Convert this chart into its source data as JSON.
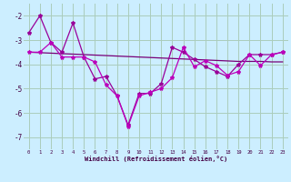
{
  "xlabel": "Windchill (Refroidissement éolien,°C)",
  "background_color": "#cceeff",
  "grid_color": "#aaccbb",
  "line_color1": "#990099",
  "line_color2": "#bb00bb",
  "line_color3": "#770077",
  "xlim": [
    -0.5,
    23.5
  ],
  "ylim": [
    -7.5,
    -1.5
  ],
  "yticks": [
    -7,
    -6,
    -5,
    -4,
    -3,
    -2
  ],
  "xticks": [
    0,
    1,
    2,
    3,
    4,
    5,
    6,
    7,
    8,
    9,
    10,
    11,
    12,
    13,
    14,
    15,
    16,
    17,
    18,
    19,
    20,
    21,
    22,
    23
  ],
  "series1_x": [
    0,
    1,
    2,
    3,
    4,
    5,
    6,
    7,
    8,
    9,
    10,
    11,
    12,
    13,
    14,
    15,
    16,
    17,
    18,
    19,
    20,
    21,
    22,
    23
  ],
  "series1_y": [
    -2.7,
    -2.0,
    -3.1,
    -3.5,
    -2.3,
    -3.7,
    -4.6,
    -4.5,
    -5.3,
    -6.5,
    -5.2,
    -5.2,
    -4.8,
    -3.3,
    -3.5,
    -3.8,
    -4.1,
    -4.3,
    -4.5,
    -4.0,
    -3.6,
    -3.6,
    -3.6,
    -3.5
  ],
  "series2_x": [
    0,
    1,
    2,
    3,
    4,
    5,
    6,
    7,
    8,
    9,
    10,
    11,
    12,
    13,
    14,
    15,
    16,
    17,
    18,
    19,
    20,
    21,
    22,
    23
  ],
  "series2_y": [
    -3.5,
    -3.52,
    -3.54,
    -3.56,
    -3.58,
    -3.6,
    -3.62,
    -3.64,
    -3.66,
    -3.68,
    -3.7,
    -3.72,
    -3.74,
    -3.76,
    -3.78,
    -3.8,
    -3.82,
    -3.84,
    -3.86,
    -3.88,
    -3.88,
    -3.88,
    -3.9,
    -3.9
  ],
  "series3_x": [
    0,
    1,
    2,
    3,
    4,
    5,
    6,
    7,
    8,
    9,
    10,
    11,
    12,
    13,
    14,
    15,
    16,
    17,
    18,
    19,
    20,
    21,
    22,
    23
  ],
  "series3_y": [
    -3.5,
    -3.5,
    -3.1,
    -3.7,
    -3.7,
    -3.7,
    -3.9,
    -4.85,
    -5.3,
    -6.55,
    -5.3,
    -5.15,
    -5.0,
    -4.55,
    -3.3,
    -4.1,
    -3.85,
    -4.05,
    -4.45,
    -4.3,
    -3.6,
    -4.05,
    -3.6,
    -3.5
  ]
}
